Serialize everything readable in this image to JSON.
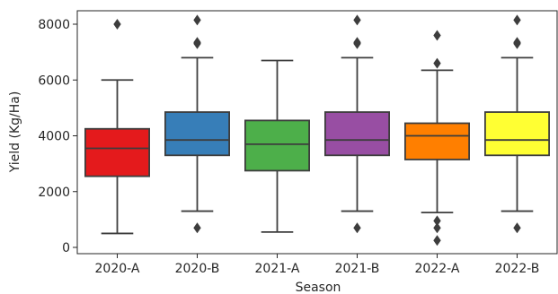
{
  "chart_data": {
    "type": "box",
    "title": "",
    "xlabel": "Season",
    "ylabel": "Yield (Kg/Ha)",
    "ylim": [
      -220,
      8520
    ],
    "yticks": [
      0,
      2000,
      4000,
      6000,
      8000
    ],
    "grid": false,
    "legend": "none",
    "categories": [
      "2020-A",
      "2020-B",
      "2021-A",
      "2021-B",
      "2022-A",
      "2022-B"
    ],
    "colors": [
      "#e41a1c",
      "#377eb8",
      "#4daf4a",
      "#984ea3",
      "#ff7f00",
      "#ffff33"
    ],
    "boxes": [
      {
        "min": 500,
        "q1": 2550,
        "median": 3550,
        "q3": 4250,
        "max": 6000,
        "outliers": [
          8000
        ]
      },
      {
        "min": 1300,
        "q1": 3300,
        "median": 3850,
        "q3": 4850,
        "max": 6800,
        "outliers": [
          700,
          7300,
          7350,
          8150
        ]
      },
      {
        "min": 550,
        "q1": 2750,
        "median": 3700,
        "q3": 4550,
        "max": 6700,
        "outliers": []
      },
      {
        "min": 1300,
        "q1": 3300,
        "median": 3850,
        "q3": 4850,
        "max": 6800,
        "outliers": [
          700,
          7300,
          7350,
          8150
        ]
      },
      {
        "min": 1250,
        "q1": 3150,
        "median": 4000,
        "q3": 4450,
        "max": 6350,
        "outliers": [
          250,
          700,
          950,
          6600,
          7600
        ]
      },
      {
        "min": 1300,
        "q1": 3300,
        "median": 3850,
        "q3": 4850,
        "max": 6800,
        "outliers": [
          700,
          7300,
          7350,
          8150
        ]
      }
    ]
  }
}
